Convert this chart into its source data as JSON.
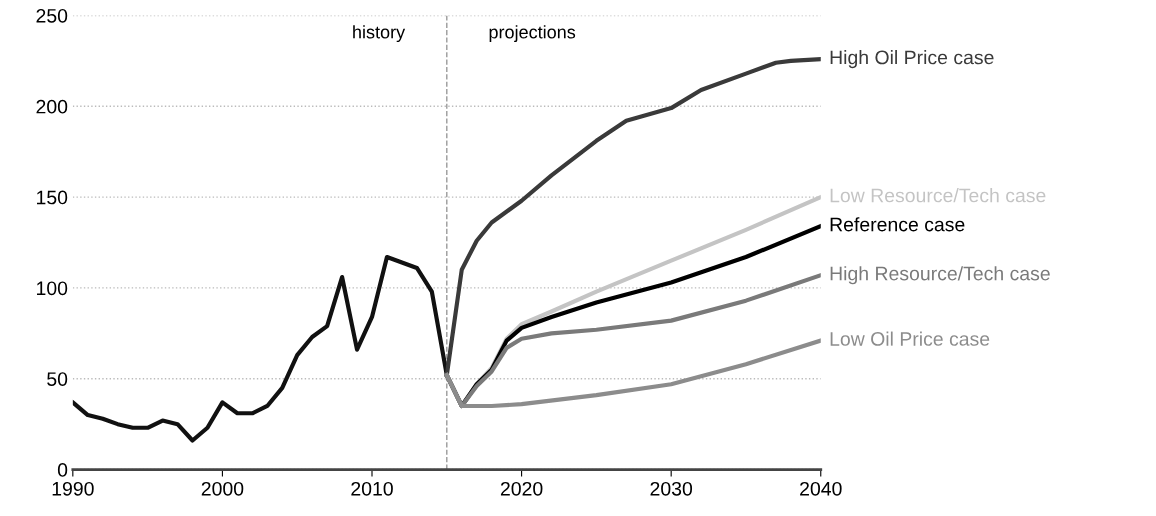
{
  "chart_data": {
    "type": "line",
    "xlim": [
      1990,
      2040
    ],
    "ylim": [
      0,
      250
    ],
    "xticks": [
      1990,
      2000,
      2010,
      2020,
      2030,
      2040
    ],
    "yticks": [
      0,
      50,
      100,
      150,
      200,
      250
    ],
    "grid": "y",
    "legend": false,
    "marker": "none",
    "line_style": "solid",
    "ref_lines": [
      {
        "axis": "x",
        "value": 2015,
        "color": "#999999",
        "line_style": "dashed"
      }
    ],
    "annotations": [
      "history",
      "projections"
    ],
    "series": [
      {
        "color": "#111111",
        "x": [
          1990,
          1991,
          1992,
          1993,
          1994,
          1995,
          1996,
          1997,
          1998,
          1999,
          2000,
          2001,
          2002,
          2003,
          2004,
          2005,
          2006,
          2007,
          2008,
          2009,
          2010,
          2011,
          2012,
          2013,
          2014,
          2015
        ],
        "values": [
          37,
          30,
          28,
          25,
          23,
          23,
          27,
          25,
          16,
          23,
          37,
          31,
          31,
          35,
          45,
          63,
          73,
          79,
          106,
          66,
          84,
          117,
          114,
          111,
          98,
          52
        ]
      },
      {
        "name": "High Oil Price case",
        "color": "#3a3a3a",
        "x": [
          2015,
          2016,
          2017,
          2018,
          2020,
          2022,
          2025,
          2027,
          2030,
          2032,
          2035,
          2037,
          2038,
          2040
        ],
        "values": [
          52,
          110,
          126,
          136,
          148,
          162,
          181,
          192,
          199,
          209,
          218,
          224,
          225,
          226
        ]
      },
      {
        "name": "Low Resource/Tech case",
        "color": "#c4c4c4",
        "x": [
          2015,
          2016,
          2017,
          2018,
          2019,
          2020,
          2022,
          2025,
          2030,
          2035,
          2040
        ],
        "values": [
          52,
          35,
          47,
          56,
          72,
          80,
          87,
          98,
          115,
          132,
          150
        ]
      },
      {
        "name": "Reference case",
        "color": "#000000",
        "x": [
          2015,
          2016,
          2017,
          2018,
          2019,
          2020,
          2022,
          2025,
          2030,
          2035,
          2040
        ],
        "values": [
          52,
          35,
          47,
          55,
          71,
          78,
          84,
          92,
          103,
          117,
          134
        ]
      },
      {
        "name": "High Resource/Tech case",
        "color": "#7a7a7a",
        "x": [
          2015,
          2016,
          2017,
          2018,
          2019,
          2020,
          2022,
          2025,
          2030,
          2035,
          2040
        ],
        "values": [
          52,
          35,
          46,
          54,
          67,
          72,
          75,
          77,
          82,
          93,
          107
        ]
      },
      {
        "name": "Low Oil Price case",
        "color": "#8c8c8c",
        "x": [
          2015,
          2016,
          2018,
          2020,
          2025,
          2030,
          2035,
          2040
        ],
        "values": [
          52,
          35,
          35,
          36,
          41,
          47,
          58,
          71
        ]
      }
    ]
  }
}
